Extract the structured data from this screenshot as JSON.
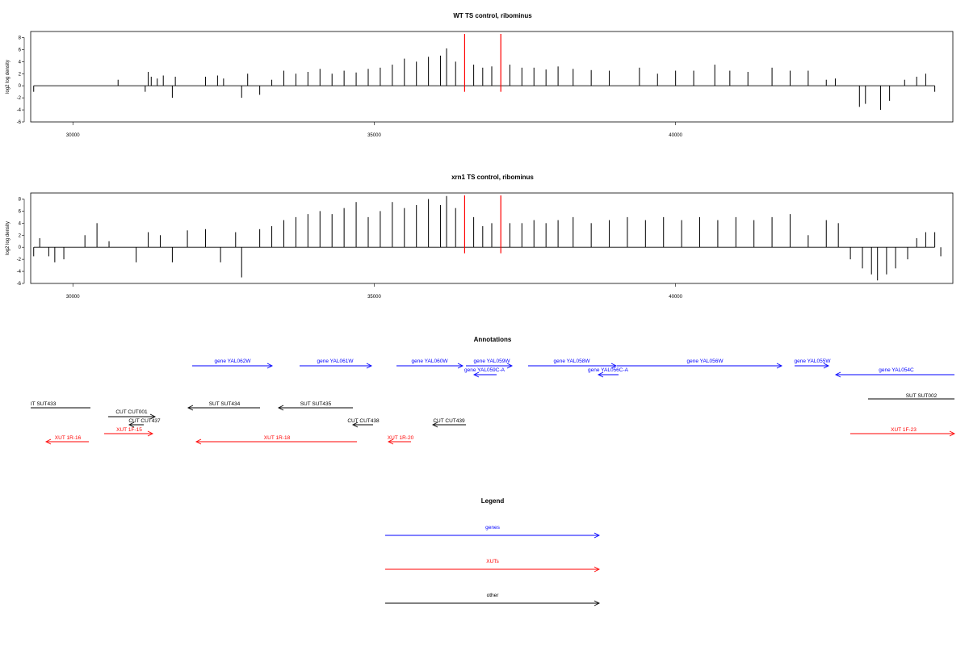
{
  "chart_data": [
    {
      "type": "bar",
      "title": "WT TS control, ribominus",
      "ylabel": "log2 log density",
      "xlim": [
        29300,
        44600
      ],
      "ylim": [
        -6,
        9
      ],
      "xticks": [
        30000,
        35000,
        40000
      ],
      "yticks": [
        -6,
        -4,
        -2,
        0,
        2,
        4,
        6,
        8
      ],
      "markers": [
        {
          "x": 36500,
          "color": "#ff0000"
        },
        {
          "x": 37100,
          "color": "#ff0000"
        }
      ],
      "bars": [
        {
          "x": 29350,
          "y": -1.0
        },
        {
          "x": 30750,
          "y": 1.0
        },
        {
          "x": 31200,
          "y": -1.0
        },
        {
          "x": 31250,
          "y": 2.3
        },
        {
          "x": 31300,
          "y": 1.5
        },
        {
          "x": 31400,
          "y": 1.2
        },
        {
          "x": 31500,
          "y": 1.7
        },
        {
          "x": 31650,
          "y": -2.0
        },
        {
          "x": 31700,
          "y": 1.5
        },
        {
          "x": 32200,
          "y": 1.5
        },
        {
          "x": 32400,
          "y": 1.7
        },
        {
          "x": 32500,
          "y": 1.2
        },
        {
          "x": 32800,
          "y": -2.0
        },
        {
          "x": 32900,
          "y": 2.0
        },
        {
          "x": 33100,
          "y": -1.5
        },
        {
          "x": 33300,
          "y": 1.0
        },
        {
          "x": 33500,
          "y": 2.5
        },
        {
          "x": 33700,
          "y": 2.0
        },
        {
          "x": 33900,
          "y": 2.3
        },
        {
          "x": 34100,
          "y": 2.8
        },
        {
          "x": 34300,
          "y": 2.0
        },
        {
          "x": 34500,
          "y": 2.5
        },
        {
          "x": 34700,
          "y": 2.2
        },
        {
          "x": 34900,
          "y": 2.8
        },
        {
          "x": 35100,
          "y": 3.0
        },
        {
          "x": 35300,
          "y": 3.5
        },
        {
          "x": 35500,
          "y": 4.5
        },
        {
          "x": 35700,
          "y": 4.0
        },
        {
          "x": 35900,
          "y": 4.8
        },
        {
          "x": 36100,
          "y": 5.0
        },
        {
          "x": 36200,
          "y": 6.2
        },
        {
          "x": 36350,
          "y": 4.0
        },
        {
          "x": 36650,
          "y": 3.5
        },
        {
          "x": 36800,
          "y": 3.0
        },
        {
          "x": 36950,
          "y": 3.2
        },
        {
          "x": 37250,
          "y": 3.5
        },
        {
          "x": 37450,
          "y": 3.0
        },
        {
          "x": 37650,
          "y": 3.0
        },
        {
          "x": 37850,
          "y": 2.7
        },
        {
          "x": 38050,
          "y": 3.2
        },
        {
          "x": 38300,
          "y": 2.8
        },
        {
          "x": 38600,
          "y": 2.6
        },
        {
          "x": 38900,
          "y": 2.5
        },
        {
          "x": 39400,
          "y": 3.0
        },
        {
          "x": 39700,
          "y": 2.0
        },
        {
          "x": 40000,
          "y": 2.5
        },
        {
          "x": 40300,
          "y": 2.5
        },
        {
          "x": 40650,
          "y": 3.5
        },
        {
          "x": 40900,
          "y": 2.5
        },
        {
          "x": 41200,
          "y": 2.3
        },
        {
          "x": 41600,
          "y": 3.0
        },
        {
          "x": 41900,
          "y": 2.5
        },
        {
          "x": 42200,
          "y": 2.5
        },
        {
          "x": 42500,
          "y": 1.0
        },
        {
          "x": 42650,
          "y": 1.2
        },
        {
          "x": 43050,
          "y": -3.5
        },
        {
          "x": 43150,
          "y": -3.0
        },
        {
          "x": 43400,
          "y": -4.0
        },
        {
          "x": 43550,
          "y": -2.5
        },
        {
          "x": 43800,
          "y": 1.0
        },
        {
          "x": 44000,
          "y": 1.5
        },
        {
          "x": 44150,
          "y": 2.0
        },
        {
          "x": 44300,
          "y": -1.0
        }
      ]
    },
    {
      "type": "bar",
      "title": "xrn1 TS control, ribominus",
      "ylabel": "log2 log density",
      "xlim": [
        29300,
        44600
      ],
      "ylim": [
        -6,
        9
      ],
      "xticks": [
        30000,
        35000,
        40000
      ],
      "yticks": [
        -6,
        -4,
        -2,
        0,
        2,
        4,
        6,
        8
      ],
      "markers": [
        {
          "x": 36500,
          "color": "#ff0000"
        },
        {
          "x": 37100,
          "color": "#ff0000"
        }
      ],
      "bars": [
        {
          "x": 29350,
          "y": -1.5
        },
        {
          "x": 29450,
          "y": 1.5
        },
        {
          "x": 29600,
          "y": -1.5
        },
        {
          "x": 29700,
          "y": -2.5
        },
        {
          "x": 29850,
          "y": -2.0
        },
        {
          "x": 30200,
          "y": 2.0
        },
        {
          "x": 30400,
          "y": 4.0
        },
        {
          "x": 30600,
          "y": 1.0
        },
        {
          "x": 31050,
          "y": -2.5
        },
        {
          "x": 31250,
          "y": 2.5
        },
        {
          "x": 31450,
          "y": 2.0
        },
        {
          "x": 31650,
          "y": -2.5
        },
        {
          "x": 31900,
          "y": 2.8
        },
        {
          "x": 32200,
          "y": 3.0
        },
        {
          "x": 32450,
          "y": -2.5
        },
        {
          "x": 32700,
          "y": 2.5
        },
        {
          "x": 32800,
          "y": -5.0
        },
        {
          "x": 33100,
          "y": 3.0
        },
        {
          "x": 33300,
          "y": 3.5
        },
        {
          "x": 33500,
          "y": 4.5
        },
        {
          "x": 33700,
          "y": 5.0
        },
        {
          "x": 33900,
          "y": 5.5
        },
        {
          "x": 34100,
          "y": 6.0
        },
        {
          "x": 34300,
          "y": 5.5
        },
        {
          "x": 34500,
          "y": 6.5
        },
        {
          "x": 34700,
          "y": 7.5
        },
        {
          "x": 34900,
          "y": 5.0
        },
        {
          "x": 35100,
          "y": 6.0
        },
        {
          "x": 35300,
          "y": 7.5
        },
        {
          "x": 35500,
          "y": 6.5
        },
        {
          "x": 35700,
          "y": 7.0
        },
        {
          "x": 35900,
          "y": 8.0
        },
        {
          "x": 36100,
          "y": 7.0
        },
        {
          "x": 36200,
          "y": 8.5
        },
        {
          "x": 36350,
          "y": 6.5
        },
        {
          "x": 36650,
          "y": 5.0
        },
        {
          "x": 36800,
          "y": 3.5
        },
        {
          "x": 36950,
          "y": 4.0
        },
        {
          "x": 37250,
          "y": 4.0
        },
        {
          "x": 37450,
          "y": 4.0
        },
        {
          "x": 37650,
          "y": 4.5
        },
        {
          "x": 37850,
          "y": 4.0
        },
        {
          "x": 38050,
          "y": 4.5
        },
        {
          "x": 38300,
          "y": 5.0
        },
        {
          "x": 38600,
          "y": 4.0
        },
        {
          "x": 38900,
          "y": 4.5
        },
        {
          "x": 39200,
          "y": 5.0
        },
        {
          "x": 39500,
          "y": 4.5
        },
        {
          "x": 39800,
          "y": 5.0
        },
        {
          "x": 40100,
          "y": 4.5
        },
        {
          "x": 40400,
          "y": 5.0
        },
        {
          "x": 40700,
          "y": 4.5
        },
        {
          "x": 41000,
          "y": 5.0
        },
        {
          "x": 41300,
          "y": 4.5
        },
        {
          "x": 41600,
          "y": 5.0
        },
        {
          "x": 41900,
          "y": 5.5
        },
        {
          "x": 42200,
          "y": 2.0
        },
        {
          "x": 42500,
          "y": 4.5
        },
        {
          "x": 42700,
          "y": 4.0
        },
        {
          "x": 42900,
          "y": -2.0
        },
        {
          "x": 43100,
          "y": -3.5
        },
        {
          "x": 43250,
          "y": -4.5
        },
        {
          "x": 43350,
          "y": -5.5
        },
        {
          "x": 43500,
          "y": -4.5
        },
        {
          "x": 43650,
          "y": -3.5
        },
        {
          "x": 43850,
          "y": -2.0
        },
        {
          "x": 44000,
          "y": 1.5
        },
        {
          "x": 44150,
          "y": 2.5
        },
        {
          "x": 44300,
          "y": 2.5
        },
        {
          "x": 44400,
          "y": -1.5
        }
      ]
    }
  ],
  "annotations": {
    "title": "Annotations",
    "items": [
      {
        "label": "gene YAL062W",
        "color": "#0000ff",
        "dir": "right"
      },
      {
        "label": "gene YAL061W",
        "color": "#0000ff",
        "dir": "right"
      },
      {
        "label": "gene YAL060W",
        "color": "#0000ff",
        "dir": "right"
      },
      {
        "label": "gene YAL059W",
        "color": "#0000ff",
        "dir": "right"
      },
      {
        "label": "gene YAL059C-A",
        "color": "#0000ff",
        "dir": "left"
      },
      {
        "label": "gene YAL058W",
        "color": "#0000ff",
        "dir": "right"
      },
      {
        "label": "gene YAL056C-A",
        "color": "#0000ff",
        "dir": "left"
      },
      {
        "label": "gene YAL056W",
        "color": "#0000ff",
        "dir": "right"
      },
      {
        "label": "gene YAL055W",
        "color": "#0000ff",
        "dir": "right"
      },
      {
        "label": "gene YAL054C",
        "color": "#0000ff",
        "dir": "left"
      },
      {
        "label": "IT SUT433",
        "color": "#000000",
        "dir": "none"
      },
      {
        "label": "CUT CUT001",
        "color": "#000000",
        "dir": "right"
      },
      {
        "label": "CUT CUT437",
        "color": "#000000",
        "dir": "left"
      },
      {
        "label": "SUT SUT434",
        "color": "#000000",
        "dir": "left"
      },
      {
        "label": "SUT SUT435",
        "color": "#000000",
        "dir": "left"
      },
      {
        "label": "CUT CUT438",
        "color": "#000000",
        "dir": "left"
      },
      {
        "label": "CUT CUT439",
        "color": "#000000",
        "dir": "left"
      },
      {
        "label": "SUT SUT002",
        "color": "#000000",
        "dir": "none"
      },
      {
        "label": "XUT 1R-16",
        "color": "#ff0000",
        "dir": "left"
      },
      {
        "label": "XUT 1F-15",
        "color": "#ff0000",
        "dir": "right"
      },
      {
        "label": "XUT 1R-18",
        "color": "#ff0000",
        "dir": "left"
      },
      {
        "label": "XUT 1R-20",
        "color": "#ff0000",
        "dir": "left"
      },
      {
        "label": "XUT 1F-23",
        "color": "#ff0000",
        "dir": "right"
      }
    ]
  },
  "legend": {
    "title": "Legend",
    "items": [
      {
        "label": "genes",
        "color": "#0000ff"
      },
      {
        "label": "XUTs",
        "color": "#ff0000"
      },
      {
        "label": "other",
        "color": "#000000"
      }
    ]
  }
}
